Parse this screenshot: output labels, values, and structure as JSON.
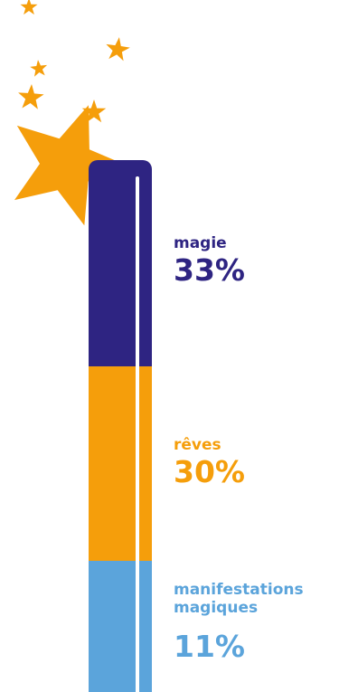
{
  "colors": {
    "star": "#F59E0B",
    "magie": "#2E2482",
    "reves": "#F59E0B",
    "manifestations": "#5BA4DB",
    "background": "#FFFFFF"
  },
  "chart_data": {
    "type": "bar",
    "title": "",
    "stacked": true,
    "categories": [
      "magie",
      "rêves",
      "manifestations magiques"
    ],
    "values": [
      33,
      30,
      11
    ],
    "value_labels": [
      "33%",
      "30%",
      "11%"
    ],
    "unit": "%",
    "series_colors": [
      "#2E2482",
      "#F59E0B",
      "#5BA4DB"
    ]
  }
}
